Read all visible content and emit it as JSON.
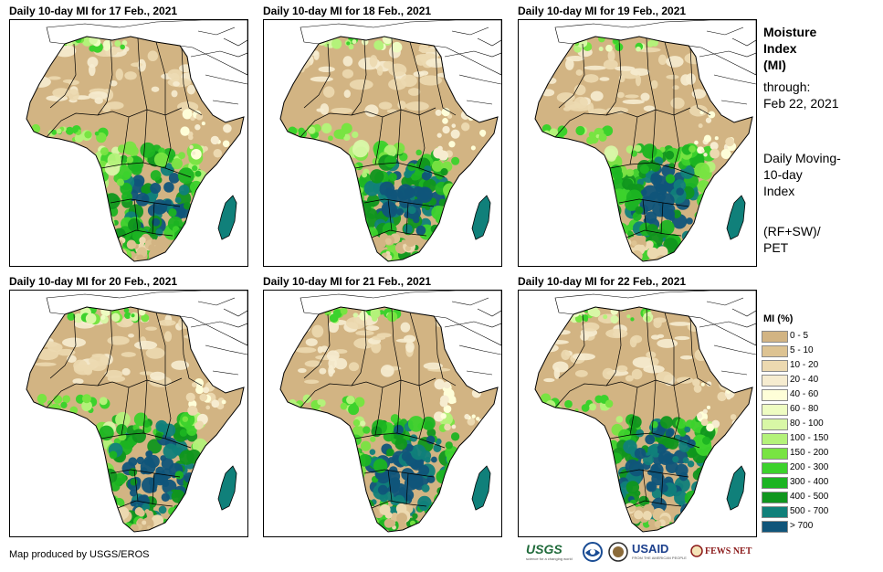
{
  "panels": [
    {
      "title": "Daily 10-day MI for 17 Feb., 2021",
      "wetness": 0.3
    },
    {
      "title": "Daily 10-day MI for 18 Feb., 2021",
      "wetness": 0.34
    },
    {
      "title": "Daily 10-day MI for 19 Feb., 2021",
      "wetness": 0.4
    },
    {
      "title": "Daily 10-day MI for 20 Feb., 2021",
      "wetness": 0.46
    },
    {
      "title": "Daily 10-day MI for 21 Feb., 2021",
      "wetness": 0.52
    },
    {
      "title": "Daily 10-day MI for 22 Feb., 2021",
      "wetness": 0.6
    }
  ],
  "sidebar": {
    "title_line1": "Moisture",
    "title_line2": "Index",
    "title_line3": "(MI)",
    "through_label": "through:",
    "through_date": "Feb 22, 2021",
    "desc_line1": "Daily Moving-",
    "desc_line2": "10-day",
    "desc_line3": "Index",
    "formula_line1": "(RF+SW)/",
    "formula_line2": "PET"
  },
  "legend": {
    "title": "MI (%)",
    "items": [
      {
        "label": "0 - 5",
        "color": "#d2b483"
      },
      {
        "label": "5 - 10",
        "color": "#ddc392"
      },
      {
        "label": "10 - 20",
        "color": "#ecd9b0"
      },
      {
        "label": "20 - 40",
        "color": "#f6ecd0"
      },
      {
        "label": "40 - 60",
        "color": "#fefed8"
      },
      {
        "label": "60 - 80",
        "color": "#eefcc2"
      },
      {
        "label": "80 - 100",
        "color": "#d8f7a6"
      },
      {
        "label": "100 - 150",
        "color": "#b4f27a"
      },
      {
        "label": "150 - 200",
        "color": "#78e442"
      },
      {
        "label": "200 - 300",
        "color": "#3cd22c"
      },
      {
        "label": "300 - 400",
        "color": "#1cb422"
      },
      {
        "label": "400 - 500",
        "color": "#10961e"
      },
      {
        "label": "500 - 700",
        "color": "#10807a"
      },
      {
        "label": "> 700",
        "color": "#10557a"
      }
    ]
  },
  "footer": {
    "credit": "Map produced by USGS/EROS",
    "logos": {
      "usgs": "USGS",
      "usgs_tagline": "science for a changing world",
      "usaid": "USAID",
      "usaid_tagline": "FROM THE AMERICAN PEOPLE",
      "fews": "FEWS NET"
    }
  }
}
